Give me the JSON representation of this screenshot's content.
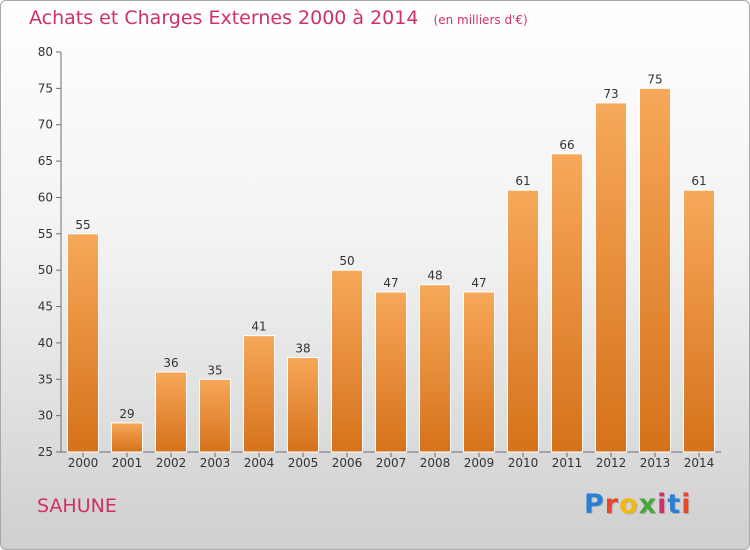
{
  "header": {
    "title": "Achats et Charges Externes 2000 à 2014",
    "subtitle": "(en milliers d'€)"
  },
  "footer": {
    "commune": "SAHUNE",
    "logo_text": "Proxiti",
    "logo_colors": [
      "#2a7fd4",
      "#e8452c",
      "#f2b90c",
      "#46a73a",
      "#d0306a",
      "#2a7fd4",
      "#e8452c"
    ]
  },
  "chart_data": {
    "type": "bar",
    "title": "Achats et Charges Externes 2000 à 2014",
    "subtitle": "(en milliers d'€)",
    "categories": [
      "2000",
      "2001",
      "2002",
      "2003",
      "2004",
      "2005",
      "2006",
      "2007",
      "2008",
      "2009",
      "2010",
      "2011",
      "2012",
      "2013",
      "2014"
    ],
    "values": [
      55,
      29,
      36,
      35,
      41,
      38,
      50,
      47,
      48,
      47,
      61,
      66,
      73,
      75,
      61
    ],
    "ylim": [
      25,
      80
    ],
    "yticks": [
      25,
      30,
      35,
      40,
      45,
      50,
      55,
      60,
      65,
      70,
      75,
      80
    ],
    "xlabel": "",
    "ylabel": "",
    "bar_color": "#f0943a",
    "grid": false,
    "data_labels": true
  }
}
